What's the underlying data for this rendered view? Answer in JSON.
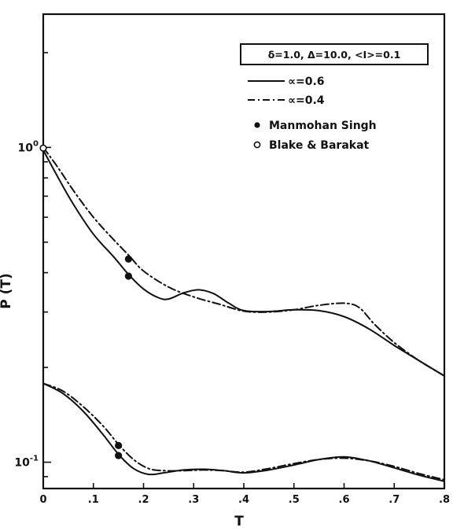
{
  "chart_data": {
    "type": "line",
    "xlabel": "T",
    "ylabel": "P (T)",
    "xlim": [
      0,
      0.8
    ],
    "x_ticks": [
      {
        "value": 0,
        "label": "0"
      },
      {
        "value": 0.1,
        "label": ".1"
      },
      {
        "value": 0.2,
        "label": ".2"
      },
      {
        "value": 0.3,
        "label": ".3"
      },
      {
        "value": 0.4,
        "label": ".4"
      },
      {
        "value": 0.5,
        "label": ".5"
      },
      {
        "value": 0.6,
        "label": ".6"
      },
      {
        "value": 0.7,
        "label": ".7"
      },
      {
        "value": 0.8,
        "label": ".8"
      }
    ],
    "y_scale": "log",
    "ylim": [
      0.0825,
      2.65
    ],
    "y_tick_labels": [
      {
        "value": 1,
        "base": "10",
        "exp": "0"
      },
      {
        "value": 0.1,
        "base": "10",
        "exp": "-1"
      }
    ],
    "parameter_box": "δ=1.0, Δ=10.0, <I>=0.1",
    "legend_position": "top-right",
    "legend": [
      {
        "label": "∝=0.6",
        "style": "solid"
      },
      {
        "label": "∝=0.4",
        "style": "dash-dot"
      },
      {
        "label": "Manmohan Singh",
        "style": "filled-circle"
      },
      {
        "label": "Blake & Barakat",
        "style": "open-circle"
      }
    ],
    "series": [
      {
        "group": "upper",
        "style": "solid",
        "x": [
          0,
          0.03,
          0.06,
          0.1,
          0.14,
          0.17,
          0.2,
          0.23,
          0.25,
          0.28,
          0.31,
          0.34,
          0.37,
          0.4,
          0.45,
          0.5,
          0.55,
          0.6,
          0.65,
          0.7,
          0.75,
          0.8
        ],
        "y": [
          0.98,
          0.8,
          0.66,
          0.53,
          0.45,
          0.395,
          0.355,
          0.333,
          0.33,
          0.345,
          0.353,
          0.343,
          0.32,
          0.303,
          0.301,
          0.305,
          0.303,
          0.29,
          0.265,
          0.235,
          0.21,
          0.188
        ]
      },
      {
        "group": "upper",
        "style": "dash-dot",
        "x": [
          0,
          0.03,
          0.06,
          0.1,
          0.14,
          0.17,
          0.2,
          0.25,
          0.3,
          0.35,
          0.4,
          0.45,
          0.5,
          0.55,
          0.6,
          0.63,
          0.66,
          0.7,
          0.75,
          0.8
        ],
        "y": [
          1.0,
          0.86,
          0.73,
          0.6,
          0.51,
          0.455,
          0.405,
          0.36,
          0.335,
          0.318,
          0.302,
          0.3,
          0.305,
          0.315,
          0.32,
          0.31,
          0.275,
          0.24,
          0.21,
          0.188
        ]
      },
      {
        "group": "lower",
        "style": "solid",
        "x": [
          0,
          0.04,
          0.08,
          0.12,
          0.15,
          0.18,
          0.21,
          0.24,
          0.28,
          0.32,
          0.36,
          0.4,
          0.45,
          0.5,
          0.55,
          0.6,
          0.65,
          0.7,
          0.75,
          0.8
        ],
        "y": [
          0.178,
          0.165,
          0.145,
          0.122,
          0.106,
          0.0955,
          0.0915,
          0.0925,
          0.0945,
          0.095,
          0.094,
          0.0925,
          0.0945,
          0.098,
          0.102,
          0.104,
          0.101,
          0.096,
          0.091,
          0.087
        ]
      },
      {
        "group": "lower",
        "style": "dash-dot",
        "x": [
          0,
          0.04,
          0.08,
          0.12,
          0.15,
          0.18,
          0.21,
          0.24,
          0.28,
          0.32,
          0.36,
          0.4,
          0.45,
          0.5,
          0.55,
          0.6,
          0.65,
          0.7,
          0.75,
          0.8
        ],
        "y": [
          0.178,
          0.168,
          0.15,
          0.13,
          0.114,
          0.102,
          0.0955,
          0.094,
          0.094,
          0.0945,
          0.094,
          0.093,
          0.0955,
          0.099,
          0.102,
          0.103,
          0.101,
          0.097,
          0.092,
          0.088
        ]
      }
    ],
    "points": [
      {
        "label": "Manmohan Singh",
        "x": 0.17,
        "y": 0.442,
        "filled": true
      },
      {
        "label": "Manmohan Singh",
        "x": 0.17,
        "y": 0.39,
        "filled": true
      },
      {
        "label": "Manmohan Singh",
        "x": 0.15,
        "y": 0.113,
        "filled": true
      },
      {
        "label": "Manmohan Singh",
        "x": 0.15,
        "y": 0.105,
        "filled": true
      },
      {
        "label": "Blake & Barakat",
        "x": 0.0,
        "y": 0.995,
        "filled": false
      }
    ]
  }
}
